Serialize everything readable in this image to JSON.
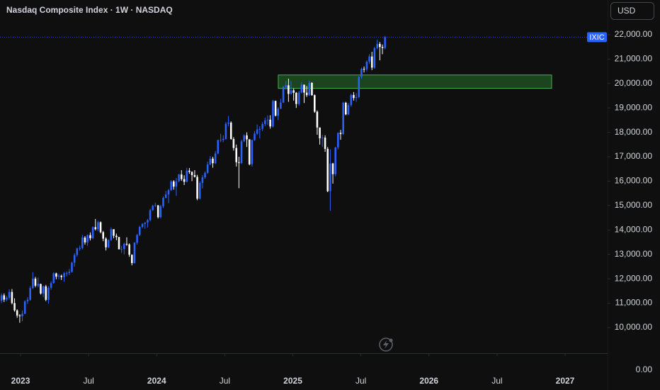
{
  "chart_data": {
    "type": "candlestick",
    "title": "Nasdaq Composite Index · 1W · NASDAQ",
    "currency_button": "USD",
    "symbol_label": "IXIC",
    "price_scale_bottom_label": "0.00",
    "up_color": "#2962ff",
    "down_color": "#ffffff",
    "xlim": [
      2022.849,
      2027.312
    ],
    "ylim": [
      8954,
      23422
    ],
    "xticks": [
      2023,
      {
        "value": 2023.5,
        "label": "Jul"
      },
      2024,
      {
        "value": 2024.5,
        "label": "Jul"
      },
      2025,
      {
        "value": 2025.5,
        "label": "Jul"
      },
      2026,
      {
        "value": 2026.5,
        "label": "Jul"
      },
      2027
    ],
    "yticks": [
      {
        "value": 10000,
        "label": "10,000.00"
      },
      {
        "value": 11000,
        "label": "11,000.00"
      },
      {
        "value": 12000,
        "label": "12,000.00"
      },
      {
        "value": 13000,
        "label": "13,000.00"
      },
      {
        "value": 14000,
        "label": "14,000.00"
      },
      {
        "value": 15000,
        "label": "15,000.00"
      },
      {
        "value": 16000,
        "label": "16,000.00"
      },
      {
        "value": 17000,
        "label": "17,000.00"
      },
      {
        "value": 18000,
        "label": "18,000.00"
      },
      {
        "value": 19000,
        "label": "19,000.00"
      },
      {
        "value": 20000,
        "label": "20,000.00"
      },
      {
        "value": 21000,
        "label": "21,000.00"
      },
      {
        "value": 22000,
        "label": "22,000.00"
      }
    ],
    "grid": false,
    "zone": {
      "x": [
        2024.893,
        2026.901
      ],
      "y": [
        19800,
        20350
      ],
      "color": "#1e4d24",
      "border_color": "#4caf50"
    },
    "x": [
      2022.86,
      2022.879,
      2022.898,
      2022.917,
      2022.937,
      2022.956,
      2022.975,
      2022.994,
      2023.013,
      2023.032,
      2023.052,
      2023.071,
      2023.09,
      2023.109,
      2023.129,
      2023.148,
      2023.167,
      2023.186,
      2023.205,
      2023.224,
      2023.243,
      2023.262,
      2023.281,
      2023.3,
      2023.32,
      2023.339,
      2023.358,
      2023.377,
      2023.396,
      2023.415,
      2023.435,
      2023.454,
      2023.473,
      2023.492,
      2023.512,
      2023.531,
      2023.55,
      2023.569,
      2023.588,
      2023.607,
      2023.627,
      2023.646,
      2023.665,
      2023.684,
      2023.704,
      2023.723,
      2023.742,
      2023.761,
      2023.78,
      2023.799,
      2023.818,
      2023.837,
      2023.856,
      2023.875,
      2023.895,
      2023.914,
      2023.933,
      2023.952,
      2023.971,
      2023.99,
      2024.01,
      2024.029,
      2024.048,
      2024.067,
      2024.087,
      2024.106,
      2024.125,
      2024.144,
      2024.163,
      2024.182,
      2024.202,
      2024.221,
      2024.24,
      2024.259,
      2024.279,
      2024.298,
      2024.317,
      2024.336,
      2024.355,
      2024.374,
      2024.393,
      2024.412,
      2024.431,
      2024.45,
      2024.47,
      2024.489,
      2024.508,
      2024.527,
      2024.546,
      2024.565,
      2024.585,
      2024.604,
      2024.623,
      2024.642,
      2024.662,
      2024.681,
      2024.7,
      2024.719,
      2024.738,
      2024.757,
      2024.777,
      2024.796,
      2024.815,
      2024.834,
      2024.854,
      2024.873,
      2024.892,
      2024.911,
      2024.93,
      2024.949,
      2024.968,
      2024.987,
      2025.006,
      2025.025,
      2025.045,
      2025.064,
      2025.083,
      2025.102,
      2025.121,
      2025.14,
      2025.16,
      2025.179,
      2025.198,
      2025.217,
      2025.237,
      2025.256,
      2025.275,
      2025.294,
      2025.313,
      2025.332,
      2025.351,
      2025.37,
      2025.389,
      2025.408,
      2025.428,
      2025.447,
      2025.466,
      2025.485,
      2025.504,
      2025.523,
      2025.543,
      2025.562,
      2025.581,
      2025.6,
      2025.62,
      2025.639,
      2025.658,
      2025.677
    ],
    "open": [
      11100,
      11323,
      11146,
      11226,
      11461,
      11005,
      10705,
      10497,
      10466,
      10569,
      11079,
      11140,
      11622,
      12007,
      11718,
      11787,
      11395,
      11689,
      11138,
      11631,
      11824,
      12222,
      12088,
      12123,
      12072,
      12227,
      12235,
      12284,
      12658,
      12975,
      13241,
      13259,
      13689,
      13492,
      13788,
      13660,
      14113,
      14032,
      14316,
      13909,
      13644,
      13290,
      13590,
      14031,
      13761,
      13708,
      13211,
      13219,
      13431,
      13407,
      12984,
      12643,
      13478,
      13798,
      14125,
      14250,
      14305,
      14404,
      14814,
      14992,
      15011,
      14524,
      14972,
      15311,
      15455,
      15629,
      15990,
      15776,
      15996,
      16274,
      16085,
      15973,
      16428,
      16379,
      16249,
      16175,
      15282,
      15928,
      16156,
      16341,
      16686,
      16921,
      16735,
      17133,
      17689,
      17689,
      17733,
      18353,
      18398,
      17727,
      17358,
      16776,
      16745,
      17632,
      17878,
      17714,
      16691,
      17684,
      17948,
      18120,
      18138,
      18343,
      18490,
      18519,
      18240,
      19287,
      18680,
      18972,
      19218,
      19860,
      19927,
      19573,
      19722,
      19622,
      19162,
      19630,
      19954,
      19627,
      19524,
      20027,
      19524,
      18847,
      18197,
      17754,
      17784,
      17323,
      15588,
      16724,
      16286,
      17383,
      17978,
      17929,
      19211,
      18737,
      19114,
      19530,
      19407,
      19447,
      20273,
      20601,
      20586,
      20896,
      21108,
      20650,
      21450,
      21622,
      21496,
      21455
    ],
    "high": [
      11400,
      11400,
      11300,
      11570,
      11580,
      11200,
      10750,
      10550,
      10700,
      11120,
      11250,
      11700,
      12270,
      12080,
      12050,
      11800,
      11720,
      11750,
      11700,
      11900,
      12270,
      12250,
      12200,
      12170,
      12280,
      12300,
      12400,
      12700,
      13050,
      13280,
      13360,
      13800,
      13750,
      13820,
      13900,
      14150,
      14450,
      14370,
      14350,
      13960,
      13700,
      13620,
      14100,
      14000,
      13850,
      13720,
      13350,
      13480,
      13700,
      13450,
      13000,
      13500,
      13830,
      14170,
      14280,
      14320,
      14450,
      14870,
      15030,
      15120,
      15020,
      15030,
      15370,
      15600,
      15680,
      16040,
      16040,
      16130,
      16300,
      16450,
      16240,
      16540,
      16540,
      16400,
      16450,
      16260,
      16000,
      16250,
      16400,
      16800,
      17030,
      17000,
      17230,
      17700,
      17940,
      17880,
      18420,
      18670,
      18450,
      17800,
      17500,
      17000,
      17700,
      17920,
      18000,
      17720,
      17700,
      18050,
      18320,
      18250,
      18420,
      18600,
      18700,
      18700,
      19330,
      19300,
      19030,
      19370,
      19900,
      20100,
      20200,
      20100,
      19800,
      19650,
      19700,
      20050,
      19950,
      19900,
      20120,
      20050,
      19550,
      18900,
      18200,
      17900,
      17880,
      17400,
      17300,
      16750,
      17400,
      18000,
      18100,
      19250,
      19250,
      19200,
      19580,
      19650,
      19600,
      20300,
      20650,
      20700,
      20950,
      21200,
      21300,
      21500,
      21800,
      21700,
      21600,
      21950
    ],
    "low": [
      11000,
      11050,
      11080,
      11150,
      10950,
      10650,
      10400,
      10200,
      10260,
      10550,
      10970,
      11100,
      11580,
      11650,
      11650,
      11350,
      11250,
      11080,
      10980,
      11550,
      11800,
      11980,
      11980,
      11950,
      11880,
      12100,
      12150,
      12250,
      12500,
      12900,
      13150,
      13200,
      13400,
      13350,
      13570,
      13620,
      13980,
      13950,
      13860,
      13540,
      13160,
      13250,
      13550,
      13660,
      13580,
      13200,
      13060,
      13000,
      13350,
      12900,
      12550,
      12620,
      13400,
      13750,
      14070,
      14050,
      14100,
      14350,
      14780,
      14950,
      14470,
      14470,
      14900,
      15300,
      15100,
      15600,
      15650,
      15400,
      15960,
      16010,
      15840,
      15950,
      16300,
      16000,
      16150,
      15220,
      15250,
      15700,
      16100,
      16300,
      16650,
      16550,
      16700,
      17100,
      17600,
      17600,
      17700,
      18250,
      17700,
      17250,
      16600,
      15710,
      16700,
      17600,
      17400,
      16650,
      16600,
      17650,
      17900,
      17750,
      18050,
      18250,
      18300,
      18150,
      18200,
      18650,
      18500,
      18950,
      19200,
      19750,
      19250,
      19550,
      19300,
      19000,
      19100,
      19600,
      19200,
      19450,
      19500,
      19500,
      18800,
      17900,
      17500,
      17400,
      17200,
      15550,
      14784,
      15900,
      16200,
      17300,
      17700,
      17900,
      18700,
      18700,
      19050,
      19300,
      19250,
      19400,
      20200,
      20450,
      20500,
      20800,
      20550,
      20600,
      21400,
      20950,
      21200,
      21400
    ],
    "close": [
      11323,
      11146,
      11226,
      11461,
      11005,
      10705,
      10497,
      10466,
      10569,
      11079,
      11140,
      11622,
      12007,
      11718,
      11787,
      11395,
      11689,
      11138,
      11631,
      11824,
      12222,
      12088,
      12123,
      12072,
      12227,
      12235,
      12284,
      12658,
      12975,
      13241,
      13259,
      13689,
      13492,
      13788,
      13660,
      14113,
      14032,
      14316,
      13909,
      13644,
      13290,
      13590,
      14031,
      13761,
      13708,
      13211,
      13219,
      13431,
      13407,
      12984,
      12643,
      13478,
      13798,
      14125,
      14250,
      14305,
      14404,
      14814,
      14992,
      15011,
      14524,
      14972,
      15311,
      15455,
      15629,
      15990,
      15776,
      15996,
      16274,
      16085,
      15973,
      16428,
      16379,
      16249,
      16175,
      15282,
      15928,
      16156,
      16341,
      16686,
      16921,
      16735,
      17133,
      17689,
      17689,
      17733,
      18353,
      18398,
      17727,
      17358,
      16776,
      16745,
      17632,
      17878,
      17714,
      16691,
      17684,
      17948,
      18120,
      18138,
      18343,
      18490,
      18519,
      18240,
      19287,
      18680,
      18972,
      19218,
      19860,
      19927,
      19573,
      19722,
      19622,
      19162,
      19630,
      19954,
      19627,
      19524,
      20027,
      19524,
      18847,
      18197,
      17754,
      17784,
      17323,
      15588,
      16724,
      16286,
      17383,
      17978,
      17929,
      19211,
      18737,
      19114,
      19530,
      19407,
      19447,
      20273,
      20601,
      20586,
      20896,
      21108,
      20650,
      21450,
      21622,
      21496,
      21455,
      21900
    ]
  }
}
